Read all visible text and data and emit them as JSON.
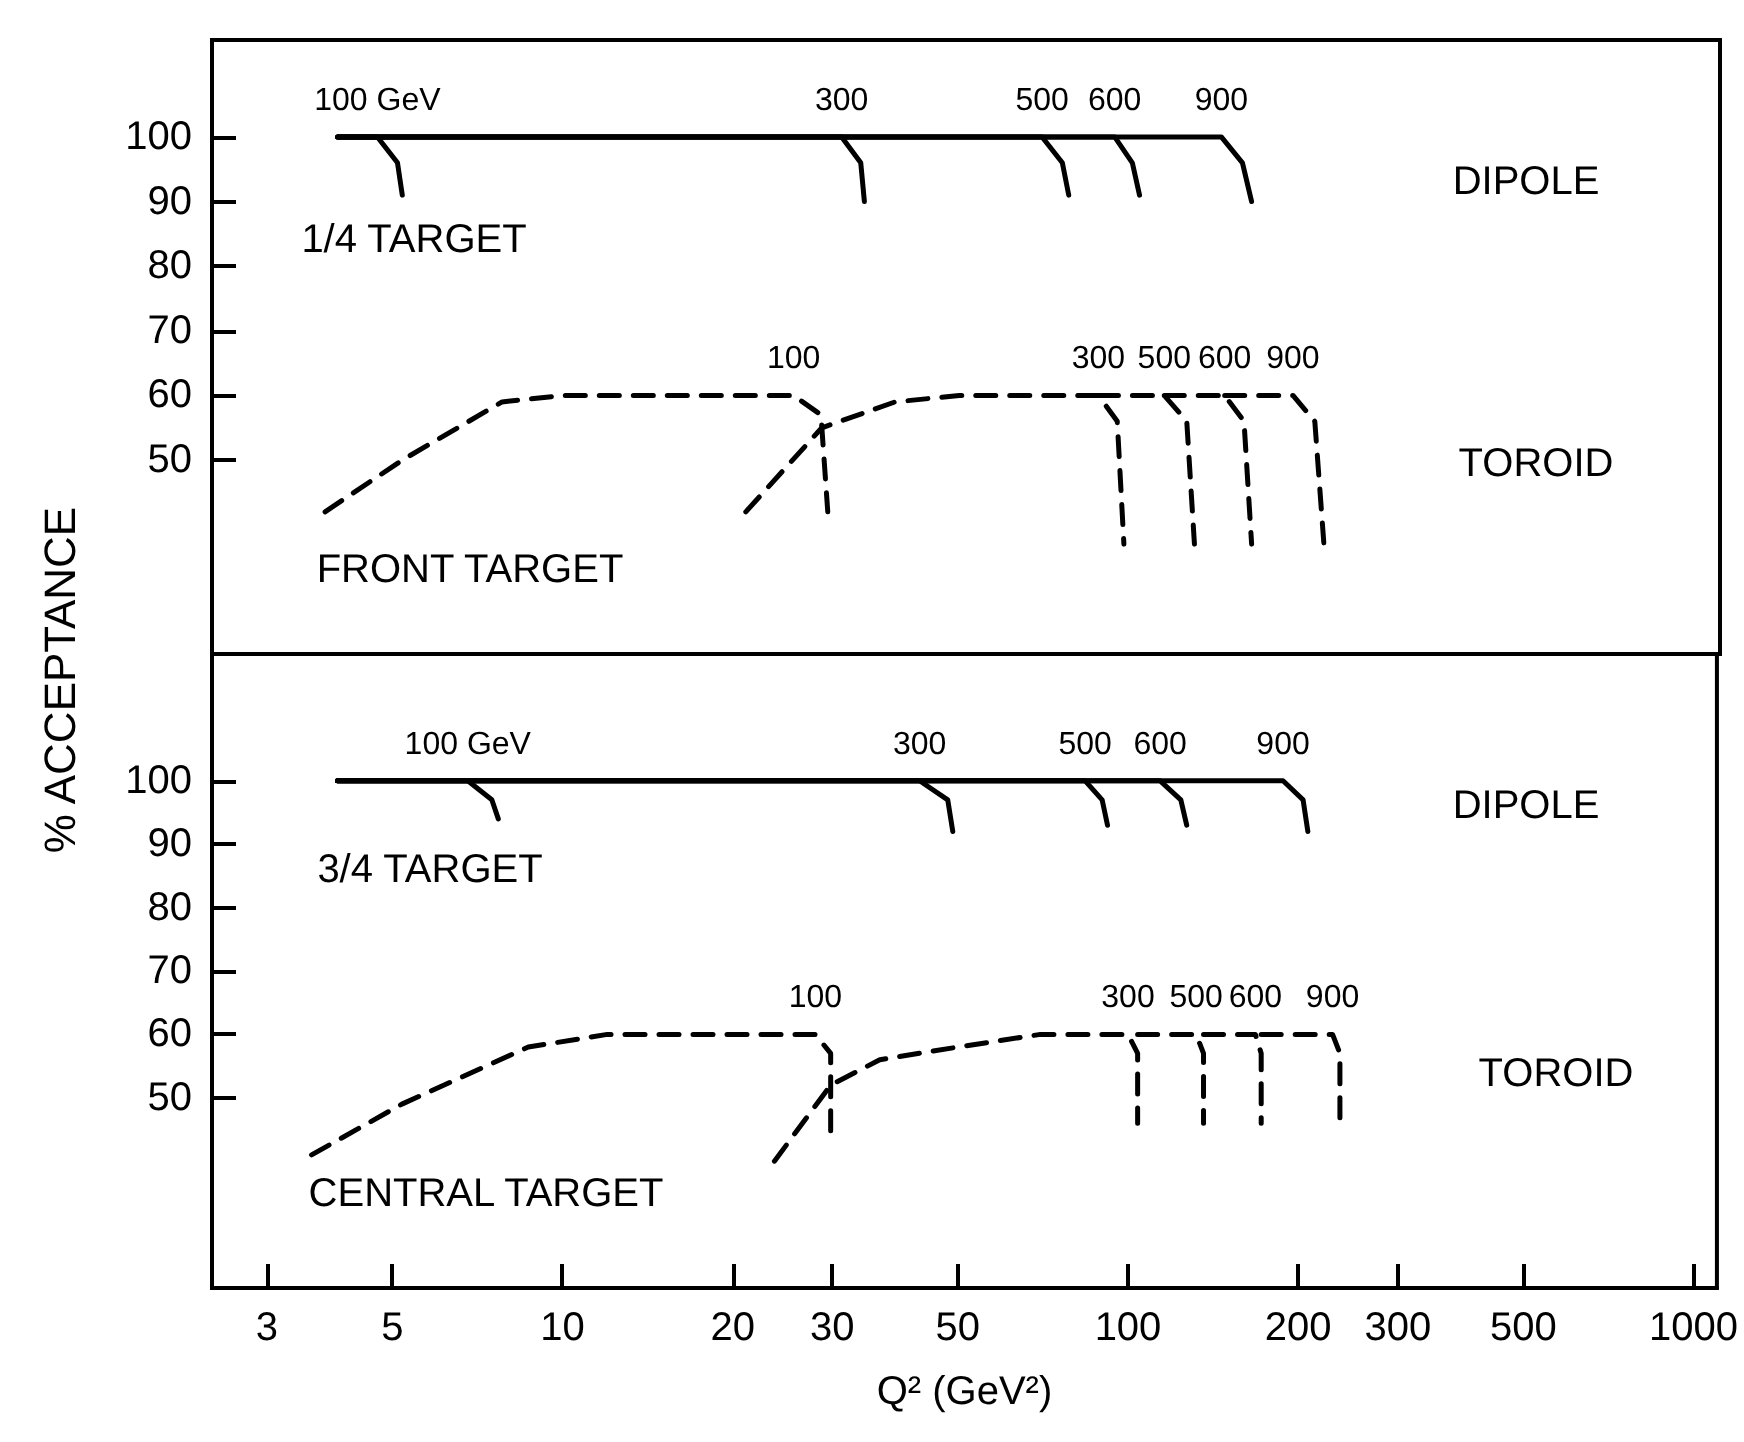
{
  "chart_data": [
    {
      "type": "line",
      "ylabel": "% ACCEPTANCE",
      "log": "x",
      "grid": false,
      "legend": false,
      "marker": "none",
      "tick_labels": "y",
      "xlim": [
        2.4,
        1100
      ],
      "ylim": [
        20,
        115
      ],
      "yticks": [
        50,
        60,
        70,
        80,
        90,
        100
      ],
      "series": [
        {
          "name": "100 GeV",
          "line_style": "solid",
          "color": "#000000",
          "x": [
            4,
            4.7,
            5.1,
            5.2
          ],
          "values": [
            100,
            100,
            96,
            91
          ]
        },
        {
          "name": "300",
          "line_style": "solid",
          "color": "#000000",
          "x": [
            4,
            31,
            33.5,
            34
          ],
          "values": [
            100,
            100,
            96,
            90
          ]
        },
        {
          "name": "500",
          "line_style": "solid",
          "color": "#000000",
          "x": [
            4,
            70,
            76,
            78
          ],
          "values": [
            100,
            100,
            96,
            91
          ]
        },
        {
          "name": "600",
          "line_style": "solid",
          "color": "#000000",
          "x": [
            4,
            94,
            101,
            104
          ],
          "values": [
            100,
            100,
            96,
            91
          ]
        },
        {
          "name": "900",
          "line_style": "solid",
          "color": "#000000",
          "x": [
            4,
            145,
            158,
            164
          ],
          "values": [
            100,
            100,
            96,
            90
          ]
        },
        {
          "name": "100",
          "line_style": "dashed",
          "color": "#000000",
          "x": [
            3.8,
            5.2,
            7.8,
            10,
            25.5,
            28.5,
            29.3
          ],
          "values": [
            42,
            50,
            59,
            60,
            60,
            57,
            42
          ]
        },
        {
          "name": "300",
          "line_style": "dashed",
          "color": "#000000",
          "x": [
            21,
            28.6,
            38.5,
            50,
            88,
            95,
            97.6
          ],
          "values": [
            42,
            55,
            59,
            60,
            60,
            56,
            37
          ]
        },
        {
          "name": "500",
          "line_style": "dashed",
          "color": "#000000",
          "x": [
            88,
            115,
            126,
            130
          ],
          "values": [
            60,
            60,
            56,
            37
          ]
        },
        {
          "name": "600",
          "line_style": "dashed",
          "color": "#000000",
          "x": [
            115,
            147,
            159,
            164
          ],
          "values": [
            60,
            60,
            56,
            37
          ]
        },
        {
          "name": "900",
          "line_style": "dashed",
          "color": "#000000",
          "x": [
            147,
            194,
            212,
            220
          ],
          "values": [
            60,
            60,
            56,
            37
          ]
        }
      ],
      "annotations": [
        "DIPOLE",
        "1/4 TARGET",
        "TOROID",
        "FRONT TARGET"
      ]
    },
    {
      "type": "line",
      "xlabel": "Q² (GeV²)",
      "log": "x",
      "grid": false,
      "legend": false,
      "marker": "none",
      "xlim": [
        2.4,
        1100
      ],
      "xticks": [
        3,
        5,
        10,
        20,
        30,
        50,
        100,
        200,
        300,
        500,
        1000
      ],
      "ylim": [
        20,
        120
      ],
      "yticks": [
        50,
        60,
        70,
        80,
        90,
        100
      ],
      "series": [
        {
          "name": "100 GeV",
          "line_style": "solid",
          "color": "#000000",
          "x": [
            4,
            6.8,
            7.5,
            7.7
          ],
          "values": [
            100,
            100,
            97,
            94
          ]
        },
        {
          "name": "300",
          "line_style": "solid",
          "color": "#000000",
          "x": [
            4,
            42.8,
            48,
            49
          ],
          "values": [
            100,
            100,
            97,
            92
          ]
        },
        {
          "name": "500",
          "line_style": "solid",
          "color": "#000000",
          "x": [
            4,
            84,
            90,
            92
          ],
          "values": [
            100,
            100,
            97,
            93
          ]
        },
        {
          "name": "600",
          "line_style": "solid",
          "color": "#000000",
          "x": [
            4,
            114,
            124,
            127
          ],
          "values": [
            100,
            100,
            97,
            93
          ]
        },
        {
          "name": "900",
          "line_style": "solid",
          "color": "#000000",
          "x": [
            4,
            188,
            204,
            208
          ],
          "values": [
            100,
            100,
            97,
            92
          ]
        },
        {
          "name": "100",
          "line_style": "dashed",
          "color": "#000000",
          "x": [
            3.6,
            5.2,
            8.7,
            12,
            28,
            29.8,
            29.8
          ],
          "values": [
            41,
            49,
            58,
            60,
            60,
            57,
            44
          ]
        },
        {
          "name": "300",
          "line_style": "dashed",
          "color": "#000000",
          "x": [
            23.7,
            29.8,
            36.4,
            50,
            70,
            100,
            104,
            104
          ],
          "values": [
            40,
            52,
            56,
            58,
            60,
            60,
            57,
            46
          ]
        },
        {
          "name": "500",
          "line_style": "dashed",
          "color": "#000000",
          "x": [
            104,
            132,
            136,
            136
          ],
          "values": [
            60,
            60,
            57,
            46
          ]
        },
        {
          "name": "600",
          "line_style": "dashed",
          "color": "#000000",
          "x": [
            136,
            168,
            172,
            172
          ],
          "values": [
            60,
            60,
            57,
            46
          ]
        },
        {
          "name": "900",
          "line_style": "dashed",
          "color": "#000000",
          "x": [
            172,
            230,
            237,
            237
          ],
          "values": [
            60,
            60,
            57,
            46
          ]
        }
      ],
      "annotations": [
        "DIPOLE",
        "3/4 TARGET",
        "TOROID",
        "CENTRAL TARGET"
      ]
    }
  ]
}
